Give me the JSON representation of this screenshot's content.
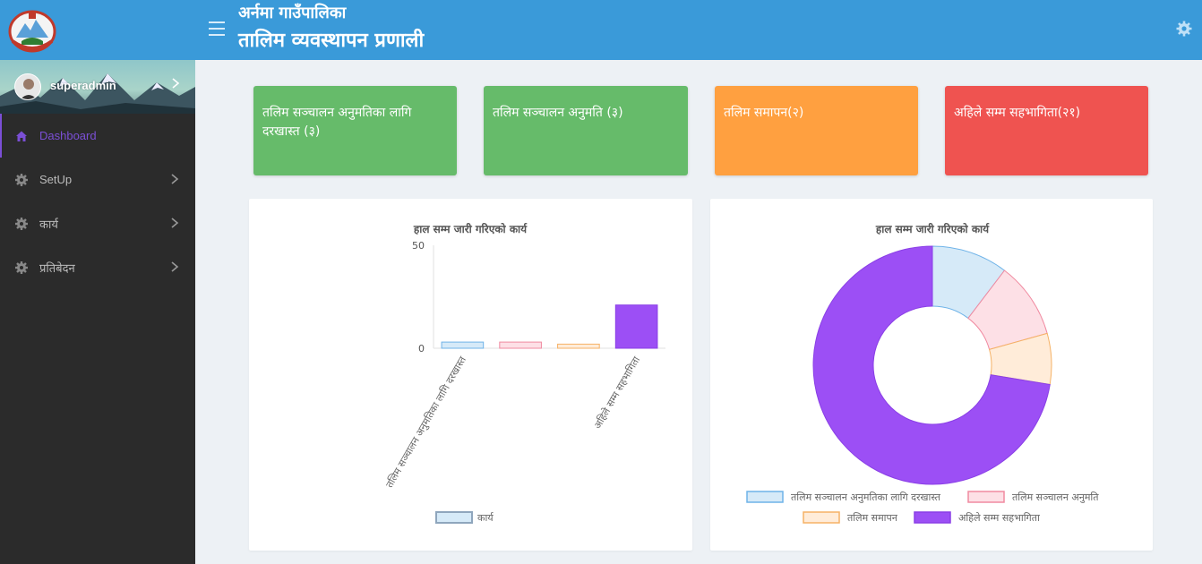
{
  "header": {
    "municipality": "अर्नमा गाउँपालिका",
    "system_name": "तालिम व्यवस्थापन प्रणाली"
  },
  "user": {
    "name": "superadmin"
  },
  "menu": [
    {
      "label": "Dashboard",
      "icon": "home-icon",
      "active": true
    },
    {
      "label": "SetUp",
      "icon": "gear-icon",
      "has_submenu": true
    },
    {
      "label": "कार्य",
      "icon": "gear-icon",
      "has_submenu": true
    },
    {
      "label": "प्रतिबेदन",
      "icon": "gear-icon",
      "has_submenu": true
    }
  ],
  "cards": [
    {
      "label": "तलिम सञ्चालन अनुमतिका लागि दरखास्त (३)",
      "color": "#66bb6a"
    },
    {
      "label": "तलिम सञ्चालन अनुमति (३)",
      "color": "#66bb6a"
    },
    {
      "label": "तलिम समापन(२)",
      "color": "#ffa040"
    },
    {
      "label": "अहिले सम्म सहभागिता(२१)",
      "color": "#ef5350"
    }
  ],
  "colors": {
    "primary": "#3a9ad9",
    "sidebar": "#2b2b2b",
    "active_menu": "#7b4fd6"
  },
  "chart_data": [
    {
      "type": "bar",
      "title": "हाल सम्म जारी गरिएको कार्य",
      "categories": [
        "तलिम सञ्चालन अनुमतिका लागि दरखास्त",
        "तलिम सञ्चालन अनुमति",
        "तलिम समापन",
        "अहिले सम्म सहभागिता"
      ],
      "shown_category_labels": [
        "तलिम सञ्चालन अनुमतिका लागि दरखास्त",
        "अहिले सम्म सहभागिता"
      ],
      "series": [
        {
          "name": "कार्य",
          "values": [
            3,
            3,
            2,
            21
          ]
        }
      ],
      "ylim": [
        0,
        50
      ],
      "yticks": [
        "0",
        "50"
      ],
      "legend": "bottom",
      "bar_fills": [
        "#d6eaf8",
        "#fde0e6",
        "#ffecd9",
        "#9c4ff5"
      ],
      "bar_strokes": [
        "#6fb3e8",
        "#f08aa0",
        "#f5b266",
        "#8a3fe6"
      ]
    },
    {
      "type": "pie",
      "title": "हाल सम्म जारी गरिएको कार्य",
      "labels": [
        "तलिम सञ्चालन अनुमतिका लागि दरखास्त",
        "तलिम सञ्चालन अनुमति",
        "तलिम समापन",
        "अहिले सम्म सहभागिता"
      ],
      "values": [
        3,
        3,
        2,
        21
      ],
      "legend": "bottom",
      "fills": [
        "#d6eaf8",
        "#fde0e6",
        "#ffecd9",
        "#9c4ff5"
      ],
      "strokes": [
        "#6fb3e8",
        "#f08aa0",
        "#f5b266",
        "#8a3fe6"
      ]
    }
  ]
}
